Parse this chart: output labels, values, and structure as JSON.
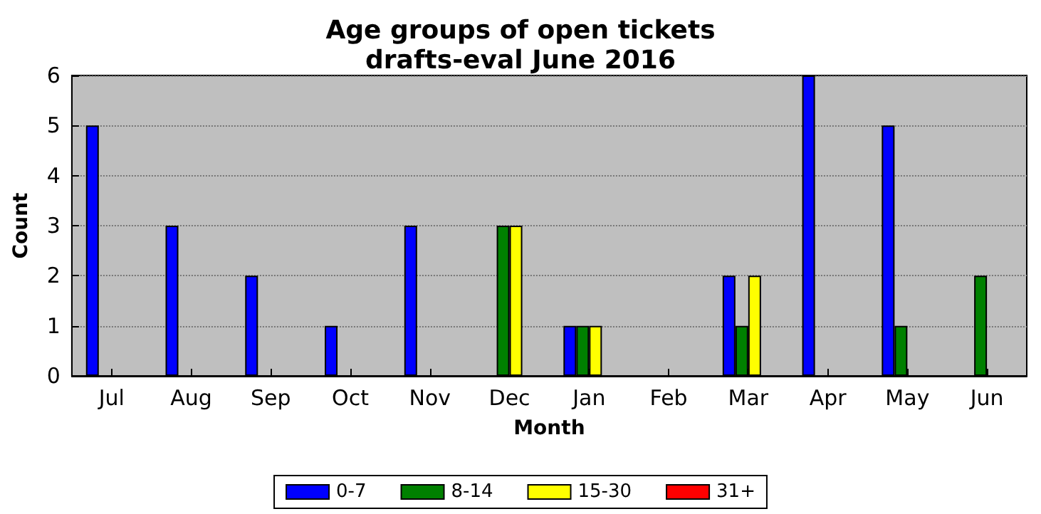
{
  "chart_data": {
    "type": "bar",
    "title": "Age groups of open tickets\ndrafts-eval June 2016",
    "xlabel": "Month",
    "ylabel": "Count",
    "categories": [
      "Jul",
      "Aug",
      "Sep",
      "Oct",
      "Nov",
      "Dec",
      "Jan",
      "Feb",
      "Mar",
      "Apr",
      "May",
      "Jun"
    ],
    "series": [
      {
        "name": "0-7",
        "color": "#0000ff",
        "values": [
          5,
          3,
          2,
          1,
          3,
          0,
          1,
          0,
          2,
          6,
          5,
          0
        ]
      },
      {
        "name": "8-14",
        "color": "#008000",
        "values": [
          0,
          0,
          0,
          0,
          0,
          3,
          1,
          0,
          1,
          0,
          1,
          2
        ]
      },
      {
        "name": "15-30",
        "color": "#ffff00",
        "values": [
          0,
          0,
          0,
          0,
          0,
          3,
          1,
          0,
          2,
          0,
          0,
          0
        ]
      },
      {
        "name": "31+",
        "color": "#ff0000",
        "values": [
          0,
          0,
          0,
          0,
          0,
          0,
          0,
          0,
          0,
          0,
          0,
          0
        ]
      }
    ],
    "ylim": [
      0,
      6
    ],
    "yticks": [
      0,
      1,
      2,
      3,
      4,
      5,
      6
    ],
    "grid": "y",
    "legend": "bottom"
  }
}
